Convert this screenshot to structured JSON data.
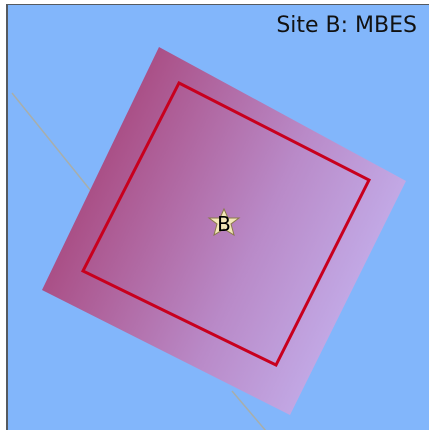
{
  "map": {
    "title": "Site B: MBES",
    "site_marker": {
      "label": "B",
      "icon": "star-marker-icon"
    },
    "colors": {
      "water": "#82b6fb",
      "survey_coverage_dark": "#a8487e",
      "survey_coverage_light": "#c6b6f2",
      "site_boundary": "#c8001e",
      "track_line": "#a8aeaa"
    }
  }
}
